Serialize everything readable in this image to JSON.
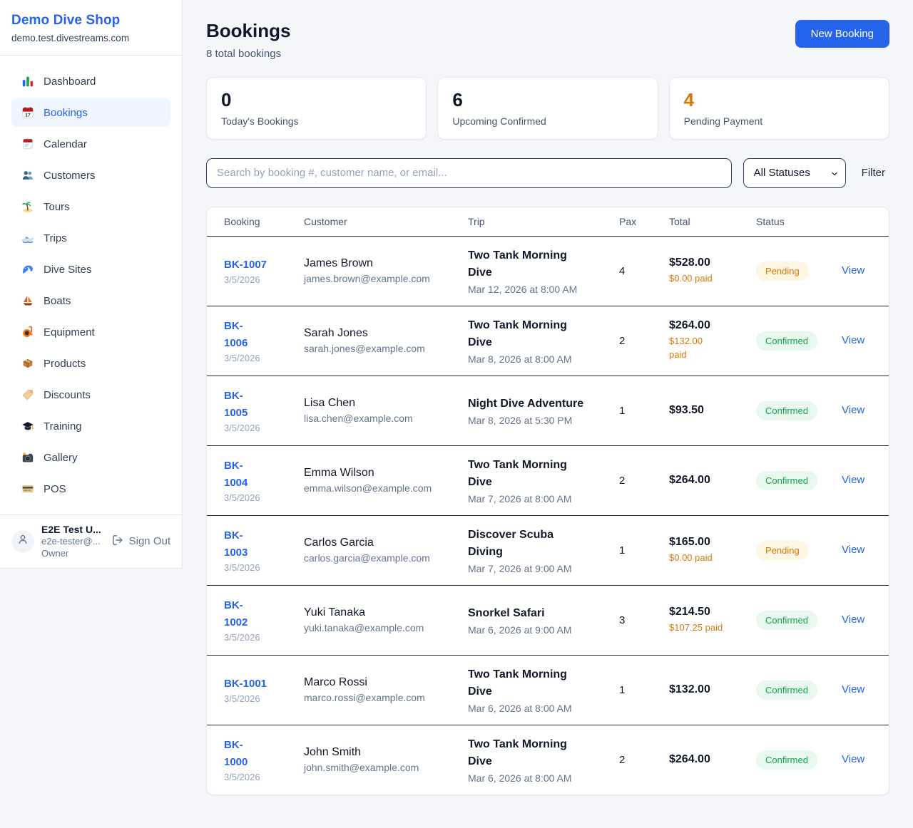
{
  "sidebar": {
    "shop_name": "Demo Dive Shop",
    "shop_domain": "demo.test.divestreams.com",
    "items": [
      {
        "label": "Dashboard",
        "icon": "bar-chart-icon",
        "active": false
      },
      {
        "label": "Bookings",
        "icon": "calendar-date-icon",
        "active": true
      },
      {
        "label": "Calendar",
        "icon": "tear-off-calendar-icon",
        "active": false
      },
      {
        "label": "Customers",
        "icon": "people-icon",
        "active": false
      },
      {
        "label": "Tours",
        "icon": "island-icon",
        "active": false
      },
      {
        "label": "Trips",
        "icon": "speedboat-icon",
        "active": false
      },
      {
        "label": "Dive Sites",
        "icon": "wave-icon",
        "active": false
      },
      {
        "label": "Boats",
        "icon": "sailboat-icon",
        "active": false
      },
      {
        "label": "Equipment",
        "icon": "diving-mask-icon",
        "active": false
      },
      {
        "label": "Products",
        "icon": "package-icon",
        "active": false
      },
      {
        "label": "Discounts",
        "icon": "tag-icon",
        "active": false
      },
      {
        "label": "Training",
        "icon": "graduation-cap-icon",
        "active": false
      },
      {
        "label": "Gallery",
        "icon": "camera-icon",
        "active": false
      },
      {
        "label": "POS",
        "icon": "credit-card-icon",
        "active": false
      }
    ],
    "user": {
      "name": "E2E Test U...",
      "email": "e2e-tester@...",
      "role": "Owner",
      "sign_out_label": "Sign Out"
    }
  },
  "header": {
    "title": "Bookings",
    "subtitle": "8 total bookings",
    "new_booking_label": "New Booking"
  },
  "stats": [
    {
      "value": "0",
      "label": "Today's Bookings"
    },
    {
      "value": "6",
      "label": "Upcoming Confirmed"
    },
    {
      "value": "4",
      "label": "Pending Payment",
      "accent": true
    }
  ],
  "controls": {
    "search_placeholder": "Search by booking #, customer name, or email...",
    "status_filter_value": "All Statuses",
    "filter_label": "Filter"
  },
  "table": {
    "columns": [
      "Booking",
      "Customer",
      "Trip",
      "Pax",
      "Total",
      "Status"
    ],
    "view_label": "View",
    "rows": [
      {
        "booking_id": "BK-1007",
        "booking_date": "3/5/2026",
        "customer_name": "James Brown",
        "customer_email": "james.brown@example.com",
        "trip_name": "Two Tank Morning\nDive",
        "trip_datetime": "Mar 12, 2026 at 8:00 AM",
        "pax": "4",
        "total": "$528.00",
        "paid": "$0.00 paid",
        "status": "Pending"
      },
      {
        "booking_id": "BK-\n1006",
        "booking_date": "3/5/2026",
        "customer_name": "Sarah Jones",
        "customer_email": "sarah.jones@example.com",
        "trip_name": "Two Tank Morning\nDive",
        "trip_datetime": "Mar 8, 2026 at 8:00 AM",
        "pax": "2",
        "total": "$264.00",
        "paid": "$132.00\npaid",
        "status": "Confirmed"
      },
      {
        "booking_id": "BK-\n1005",
        "booking_date": "3/5/2026",
        "customer_name": "Lisa Chen",
        "customer_email": "lisa.chen@example.com",
        "trip_name": "Night Dive Adventure",
        "trip_datetime": "Mar 8, 2026 at 5:30 PM",
        "pax": "1",
        "total": "$93.50",
        "paid": "",
        "status": "Confirmed"
      },
      {
        "booking_id": "BK-\n1004",
        "booking_date": "3/5/2026",
        "customer_name": "Emma Wilson",
        "customer_email": "emma.wilson@example.com",
        "trip_name": "Two Tank Morning\nDive",
        "trip_datetime": "Mar 7, 2026 at 8:00 AM",
        "pax": "2",
        "total": "$264.00",
        "paid": "",
        "status": "Confirmed"
      },
      {
        "booking_id": "BK-\n1003",
        "booking_date": "3/5/2026",
        "customer_name": "Carlos Garcia",
        "customer_email": "carlos.garcia@example.com",
        "trip_name": "Discover Scuba\nDiving",
        "trip_datetime": "Mar 7, 2026 at 9:00 AM",
        "pax": "1",
        "total": "$165.00",
        "paid": "$0.00 paid",
        "status": "Pending"
      },
      {
        "booking_id": "BK-\n1002",
        "booking_date": "3/5/2026",
        "customer_name": "Yuki Tanaka",
        "customer_email": "yuki.tanaka@example.com",
        "trip_name": "Snorkel Safari",
        "trip_datetime": "Mar 6, 2026 at 9:00 AM",
        "pax": "3",
        "total": "$214.50",
        "paid": "$107.25 paid",
        "status": "Confirmed"
      },
      {
        "booking_id": "BK-1001",
        "booking_date": "3/5/2026",
        "customer_name": "Marco Rossi",
        "customer_email": "marco.rossi@example.com",
        "trip_name": "Two Tank Morning\nDive",
        "trip_datetime": "Mar 6, 2026 at 8:00 AM",
        "pax": "1",
        "total": "$132.00",
        "paid": "",
        "status": "Confirmed"
      },
      {
        "booking_id": "BK-\n1000",
        "booking_date": "3/5/2026",
        "customer_name": "John Smith",
        "customer_email": "john.smith@example.com",
        "trip_name": "Two Tank Morning\nDive",
        "trip_datetime": "Mar 6, 2026 at 8:00 AM",
        "pax": "2",
        "total": "$264.00",
        "paid": "",
        "status": "Confirmed"
      }
    ]
  },
  "colors": {
    "accent_blue": "#2563eb",
    "orange": "#d97706",
    "green": "#16a34a",
    "pending_badge_bg": "#fdf6e3",
    "confirmed_badge_bg": "#e8f8ee",
    "sidebar_active_bg": "#eff6ff"
  }
}
